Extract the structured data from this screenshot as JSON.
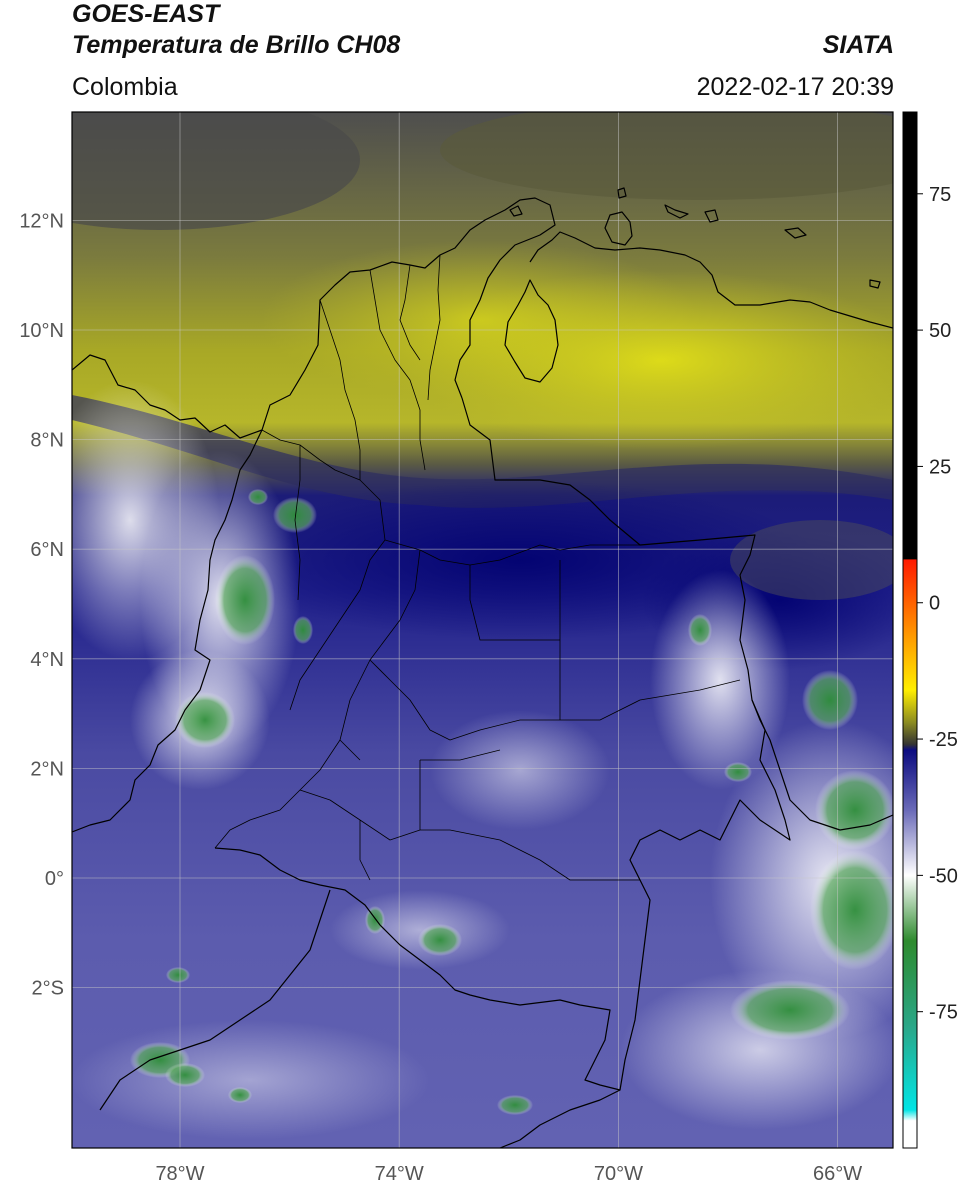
{
  "header": {
    "satellite": "GOES-EAST",
    "product": "Temperatura de Brillo CH08",
    "region": "Colombia",
    "brand": "SIATA",
    "datetime": "2022-02-17 20:39"
  },
  "axes": {
    "lat_ticks": [
      {
        "value": 12,
        "label": "12°N"
      },
      {
        "value": 10,
        "label": "10°N"
      },
      {
        "value": 8,
        "label": "8°N"
      },
      {
        "value": 6,
        "label": "6°N"
      },
      {
        "value": 4,
        "label": "4°N"
      },
      {
        "value": 2,
        "label": "2°N"
      },
      {
        "value": 0,
        "label": "0°"
      },
      {
        "value": -2,
        "label": "2°S"
      }
    ],
    "lon_ticks": [
      {
        "value": -78,
        "label": "78°W"
      },
      {
        "value": -74,
        "label": "74°W"
      },
      {
        "value": -70,
        "label": "70°W"
      },
      {
        "value": -66,
        "label": "66°W"
      }
    ],
    "lon_range": [
      -80,
      -65
    ],
    "lat_range": [
      -5,
      14
    ],
    "grid": true
  },
  "colorbar": {
    "ticks": [
      {
        "value": 75,
        "label": "75"
      },
      {
        "value": 50,
        "label": "50"
      },
      {
        "value": 25,
        "label": "25"
      },
      {
        "value": 0,
        "label": "0"
      },
      {
        "value": -25,
        "label": "-25"
      },
      {
        "value": -50,
        "label": "-50"
      },
      {
        "value": -75,
        "label": "-75"
      }
    ],
    "range": [
      -100,
      90
    ],
    "stops": [
      {
        "value": 90,
        "color": "#000000"
      },
      {
        "value": 8,
        "color": "#000000"
      },
      {
        "value": 7.9,
        "color": "#ff1a00"
      },
      {
        "value": -6,
        "color": "#ff9900"
      },
      {
        "value": -16,
        "color": "#ffee00"
      },
      {
        "value": -22,
        "color": "#8a8a20"
      },
      {
        "value": -26,
        "color": "#333333"
      },
      {
        "value": -27,
        "color": "#0b0b80"
      },
      {
        "value": -38,
        "color": "#6a6ab8"
      },
      {
        "value": -50,
        "color": "#ffffff"
      },
      {
        "value": -62,
        "color": "#2e8b2e"
      },
      {
        "value": -78,
        "color": "#2aa88a"
      },
      {
        "value": -93,
        "color": "#00e5e5"
      },
      {
        "value": -95,
        "color": "#ffffff"
      },
      {
        "value": -100,
        "color": "#ffffff"
      }
    ]
  }
}
